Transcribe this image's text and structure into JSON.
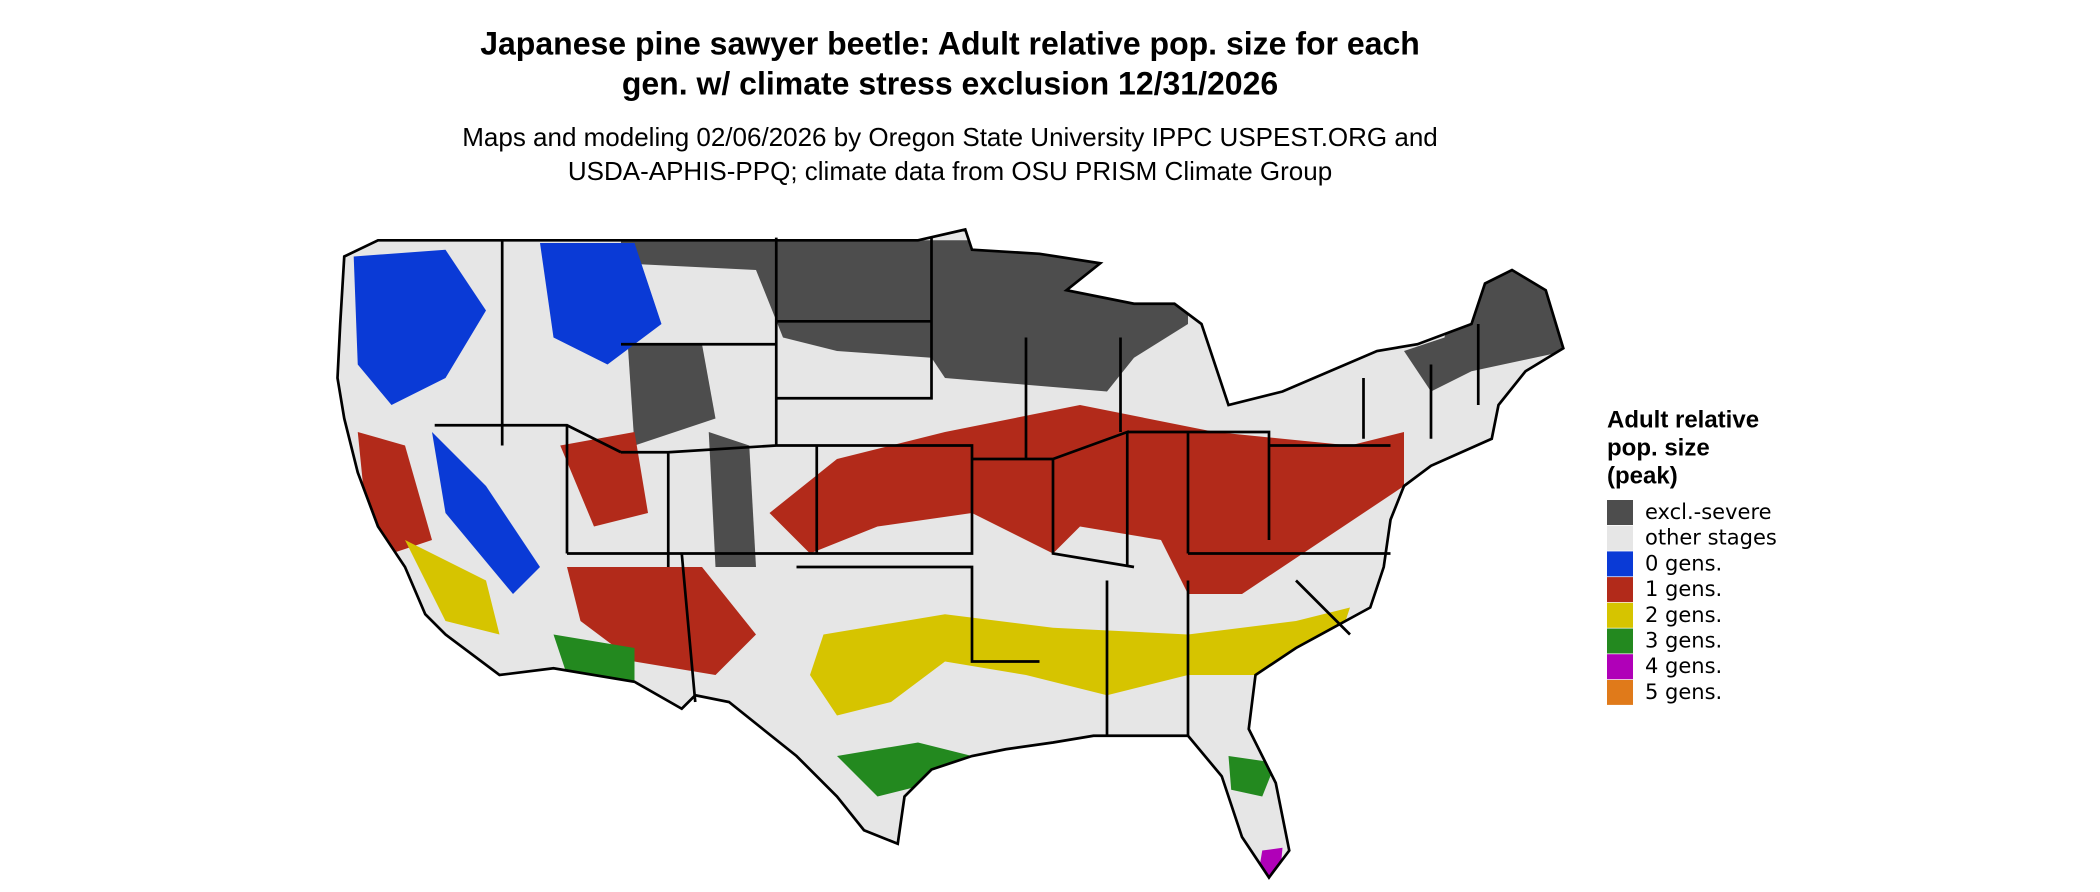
{
  "header": {
    "title_lines": [
      "Japanese pine sawyer beetle: Adult relative pop. size for each",
      "gen. w/ climate stress exclusion 12/31/2026"
    ],
    "subtitle_lines": [
      "Maps and modeling 02/06/2026 by Oregon State University IPPC USPEST.ORG and",
      "USDA-APHIS-PPQ; climate data from OSU PRISM Climate Group"
    ]
  },
  "legend": {
    "title_lines": [
      "Adult relative",
      "pop. size",
      "(peak)"
    ],
    "items": [
      {
        "label": "excl.-severe",
        "color": "#4d4d4d"
      },
      {
        "label": "other stages",
        "color": "#e6e6e6"
      },
      {
        "label": "0 gens.",
        "color": "#0a3ad6"
      },
      {
        "label": "1 gens.",
        "color": "#b22a1a"
      },
      {
        "label": "2 gens.",
        "color": "#d6c400"
      },
      {
        "label": "3 gens.",
        "color": "#23891f"
      },
      {
        "label": "4 gens.",
        "color": "#b000b8"
      },
      {
        "label": "5 gens.",
        "color": "#e07a1a"
      }
    ]
  }
}
